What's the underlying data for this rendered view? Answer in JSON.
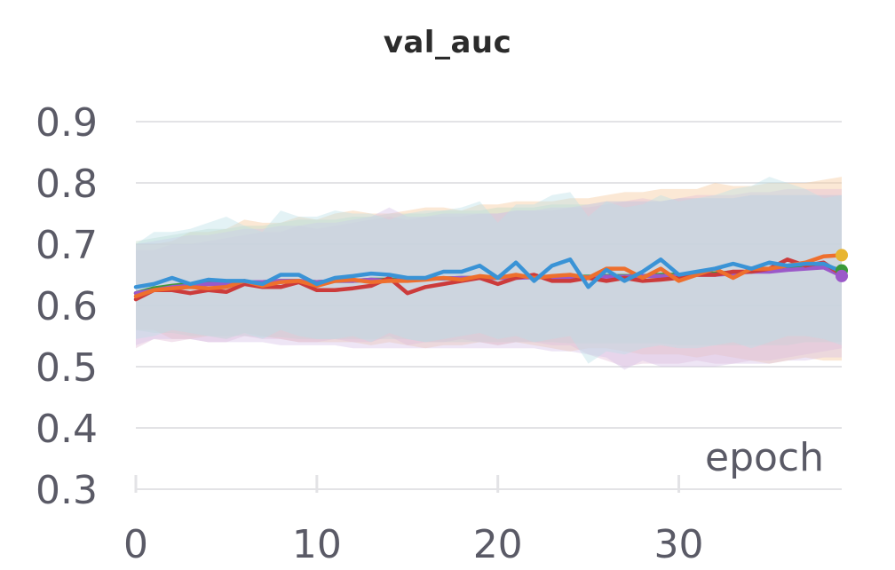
{
  "chart_data": {
    "type": "line",
    "title": "val_auc",
    "xlabel": "epoch",
    "ylabel": "",
    "xlim": [
      0,
      39
    ],
    "ylim": [
      0.3,
      0.9
    ],
    "xticks": [
      "0",
      "10",
      "20",
      "30"
    ],
    "yticks": [
      "0.3",
      "0.4",
      "0.5",
      "0.6",
      "0.7",
      "0.8",
      "0.9"
    ],
    "grid": true,
    "legend": "none",
    "x": [
      0,
      1,
      2,
      3,
      4,
      5,
      6,
      7,
      8,
      9,
      10,
      11,
      12,
      13,
      14,
      15,
      16,
      17,
      18,
      19,
      20,
      21,
      22,
      23,
      24,
      25,
      26,
      27,
      28,
      29,
      30,
      31,
      32,
      33,
      34,
      35,
      36,
      37,
      38,
      39
    ],
    "series": [
      {
        "color": "#ee6f2d",
        "band_color": "#f5c99b",
        "values": [
          0.615,
          0.625,
          0.628,
          0.63,
          0.628,
          0.63,
          0.64,
          0.632,
          0.638,
          0.64,
          0.632,
          0.64,
          0.642,
          0.638,
          0.64,
          0.64,
          0.642,
          0.645,
          0.642,
          0.648,
          0.645,
          0.65,
          0.645,
          0.648,
          0.65,
          0.645,
          0.66,
          0.66,
          0.645,
          0.66,
          0.64,
          0.65,
          0.66,
          0.645,
          0.66,
          0.66,
          0.665,
          0.67,
          0.68,
          0.682
        ],
        "upper": [
          0.7,
          0.7,
          0.705,
          0.72,
          0.72,
          0.725,
          0.74,
          0.735,
          0.735,
          0.745,
          0.74,
          0.75,
          0.755,
          0.75,
          0.75,
          0.755,
          0.76,
          0.76,
          0.755,
          0.765,
          0.765,
          0.77,
          0.77,
          0.77,
          0.775,
          0.775,
          0.78,
          0.785,
          0.785,
          0.79,
          0.79,
          0.79,
          0.8,
          0.795,
          0.795,
          0.8,
          0.8,
          0.8,
          0.805,
          0.81
        ],
        "lower": [
          0.56,
          0.56,
          0.545,
          0.545,
          0.55,
          0.545,
          0.555,
          0.55,
          0.545,
          0.54,
          0.54,
          0.54,
          0.54,
          0.535,
          0.54,
          0.535,
          0.53,
          0.535,
          0.535,
          0.54,
          0.535,
          0.54,
          0.535,
          0.53,
          0.525,
          0.53,
          0.53,
          0.525,
          0.52,
          0.52,
          0.52,
          0.515,
          0.52,
          0.515,
          0.51,
          0.505,
          0.51,
          0.515,
          0.51,
          0.51
        ]
      },
      {
        "color": "#cc3b3b",
        "band_color": "#e3bcd6",
        "values": [
          0.61,
          0.625,
          0.625,
          0.62,
          0.625,
          0.622,
          0.635,
          0.63,
          0.63,
          0.638,
          0.625,
          0.625,
          0.628,
          0.632,
          0.645,
          0.62,
          0.63,
          0.635,
          0.64,
          0.645,
          0.635,
          0.645,
          0.65,
          0.64,
          0.64,
          0.645,
          0.64,
          0.645,
          0.64,
          0.642,
          0.645,
          0.65,
          0.65,
          0.655,
          0.655,
          0.66,
          0.675,
          0.665,
          0.67,
          0.65
        ],
        "upper": [
          0.69,
          0.69,
          0.7,
          0.7,
          0.705,
          0.71,
          0.715,
          0.72,
          0.72,
          0.73,
          0.725,
          0.73,
          0.735,
          0.74,
          0.745,
          0.74,
          0.745,
          0.745,
          0.745,
          0.75,
          0.75,
          0.755,
          0.755,
          0.755,
          0.76,
          0.76,
          0.765,
          0.77,
          0.775,
          0.77,
          0.775,
          0.78,
          0.78,
          0.78,
          0.785,
          0.785,
          0.79,
          0.79,
          0.79,
          0.79
        ],
        "lower": [
          0.53,
          0.545,
          0.54,
          0.545,
          0.54,
          0.54,
          0.55,
          0.545,
          0.545,
          0.54,
          0.54,
          0.545,
          0.54,
          0.54,
          0.55,
          0.535,
          0.54,
          0.54,
          0.545,
          0.54,
          0.535,
          0.54,
          0.54,
          0.535,
          0.535,
          0.52,
          0.51,
          0.5,
          0.505,
          0.505,
          0.505,
          0.51,
          0.505,
          0.505,
          0.51,
          0.51,
          0.515,
          0.52,
          0.525,
          0.53
        ]
      },
      {
        "color": "#3a9a3a",
        "band_color": "#bfdcc9",
        "values": [
          0.62,
          0.628,
          0.632,
          0.635,
          0.636,
          0.636,
          0.638,
          0.638,
          0.64,
          0.64,
          0.638,
          0.64,
          0.64,
          0.642,
          0.642,
          0.642,
          0.644,
          0.644,
          0.645,
          0.645,
          0.645,
          0.646,
          0.646,
          0.646,
          0.647,
          0.647,
          0.648,
          0.648,
          0.648,
          0.65,
          0.65,
          0.652,
          0.652,
          0.654,
          0.655,
          0.657,
          0.66,
          0.662,
          0.665,
          0.657
        ],
        "upper": [
          0.705,
          0.71,
          0.715,
          0.72,
          0.725,
          0.725,
          0.73,
          0.73,
          0.735,
          0.74,
          0.74,
          0.74,
          0.745,
          0.745,
          0.75,
          0.75,
          0.75,
          0.755,
          0.755,
          0.755,
          0.76,
          0.76,
          0.76,
          0.765,
          0.765,
          0.765,
          0.77,
          0.77,
          0.77,
          0.77,
          0.775,
          0.775,
          0.775,
          0.775,
          0.78,
          0.78,
          0.78,
          0.78,
          0.78,
          0.78
        ],
        "lower": [
          0.56,
          0.555,
          0.555,
          0.55,
          0.55,
          0.55,
          0.55,
          0.548,
          0.548,
          0.545,
          0.545,
          0.545,
          0.545,
          0.545,
          0.545,
          0.545,
          0.54,
          0.54,
          0.54,
          0.54,
          0.54,
          0.54,
          0.54,
          0.54,
          0.538,
          0.538,
          0.538,
          0.538,
          0.538,
          0.538,
          0.535,
          0.535,
          0.535,
          0.535,
          0.535,
          0.535,
          0.535,
          0.54,
          0.54,
          0.54
        ]
      },
      {
        "color": "#9b59c9",
        "band_color": "#d7c0e6",
        "values": [
          0.62,
          0.625,
          0.63,
          0.632,
          0.635,
          0.635,
          0.638,
          0.638,
          0.64,
          0.64,
          0.638,
          0.64,
          0.64,
          0.642,
          0.64,
          0.642,
          0.644,
          0.644,
          0.645,
          0.645,
          0.645,
          0.645,
          0.646,
          0.646,
          0.646,
          0.646,
          0.647,
          0.647,
          0.648,
          0.648,
          0.648,
          0.65,
          0.65,
          0.652,
          0.655,
          0.655,
          0.658,
          0.66,
          0.662,
          0.648
        ],
        "upper": [
          0.7,
          0.705,
          0.71,
          0.715,
          0.715,
          0.72,
          0.725,
          0.725,
          0.73,
          0.73,
          0.735,
          0.735,
          0.74,
          0.745,
          0.76,
          0.745,
          0.745,
          0.75,
          0.75,
          0.75,
          0.75,
          0.755,
          0.755,
          0.76,
          0.76,
          0.765,
          0.77,
          0.77,
          0.77,
          0.77,
          0.775,
          0.775,
          0.775,
          0.775,
          0.78,
          0.78,
          0.78,
          0.78,
          0.78,
          0.78
        ],
        "lower": [
          0.535,
          0.545,
          0.545,
          0.545,
          0.54,
          0.54,
          0.54,
          0.54,
          0.535,
          0.535,
          0.535,
          0.535,
          0.53,
          0.53,
          0.53,
          0.53,
          0.53,
          0.53,
          0.53,
          0.53,
          0.53,
          0.53,
          0.53,
          0.525,
          0.525,
          0.52,
          0.515,
          0.495,
          0.51,
          0.5,
          0.5,
          0.5,
          0.5,
          0.505,
          0.505,
          0.505,
          0.51,
          0.51,
          0.515,
          0.515
        ]
      },
      {
        "color": "#3a93d6",
        "band_color": "#bcdfe8",
        "values": [
          0.63,
          0.635,
          0.645,
          0.635,
          0.642,
          0.64,
          0.64,
          0.635,
          0.65,
          0.65,
          0.635,
          0.645,
          0.648,
          0.652,
          0.65,
          0.645,
          0.645,
          0.655,
          0.655,
          0.665,
          0.645,
          0.67,
          0.64,
          0.665,
          0.675,
          0.63,
          0.658,
          0.64,
          0.655,
          0.675,
          0.65,
          0.655,
          0.66,
          0.668,
          0.66,
          0.67,
          0.665,
          0.668,
          0.668,
          0.655
        ],
        "upper": [
          0.7,
          0.72,
          0.72,
          0.725,
          0.735,
          0.745,
          0.73,
          0.72,
          0.755,
          0.745,
          0.745,
          0.755,
          0.75,
          0.75,
          0.74,
          0.75,
          0.755,
          0.755,
          0.76,
          0.77,
          0.735,
          0.765,
          0.765,
          0.78,
          0.785,
          0.745,
          0.77,
          0.76,
          0.765,
          0.78,
          0.77,
          0.775,
          0.78,
          0.79,
          0.795,
          0.81,
          0.8,
          0.79,
          0.775,
          0.78
        ],
        "lower": [
          0.545,
          0.55,
          0.56,
          0.555,
          0.55,
          0.545,
          0.555,
          0.545,
          0.56,
          0.55,
          0.545,
          0.545,
          0.55,
          0.54,
          0.555,
          0.545,
          0.54,
          0.545,
          0.55,
          0.555,
          0.545,
          0.55,
          0.54,
          0.545,
          0.55,
          0.505,
          0.525,
          0.52,
          0.53,
          0.535,
          0.53,
          0.53,
          0.535,
          0.54,
          0.53,
          0.54,
          0.55,
          0.55,
          0.545,
          0.535
        ]
      }
    ]
  }
}
